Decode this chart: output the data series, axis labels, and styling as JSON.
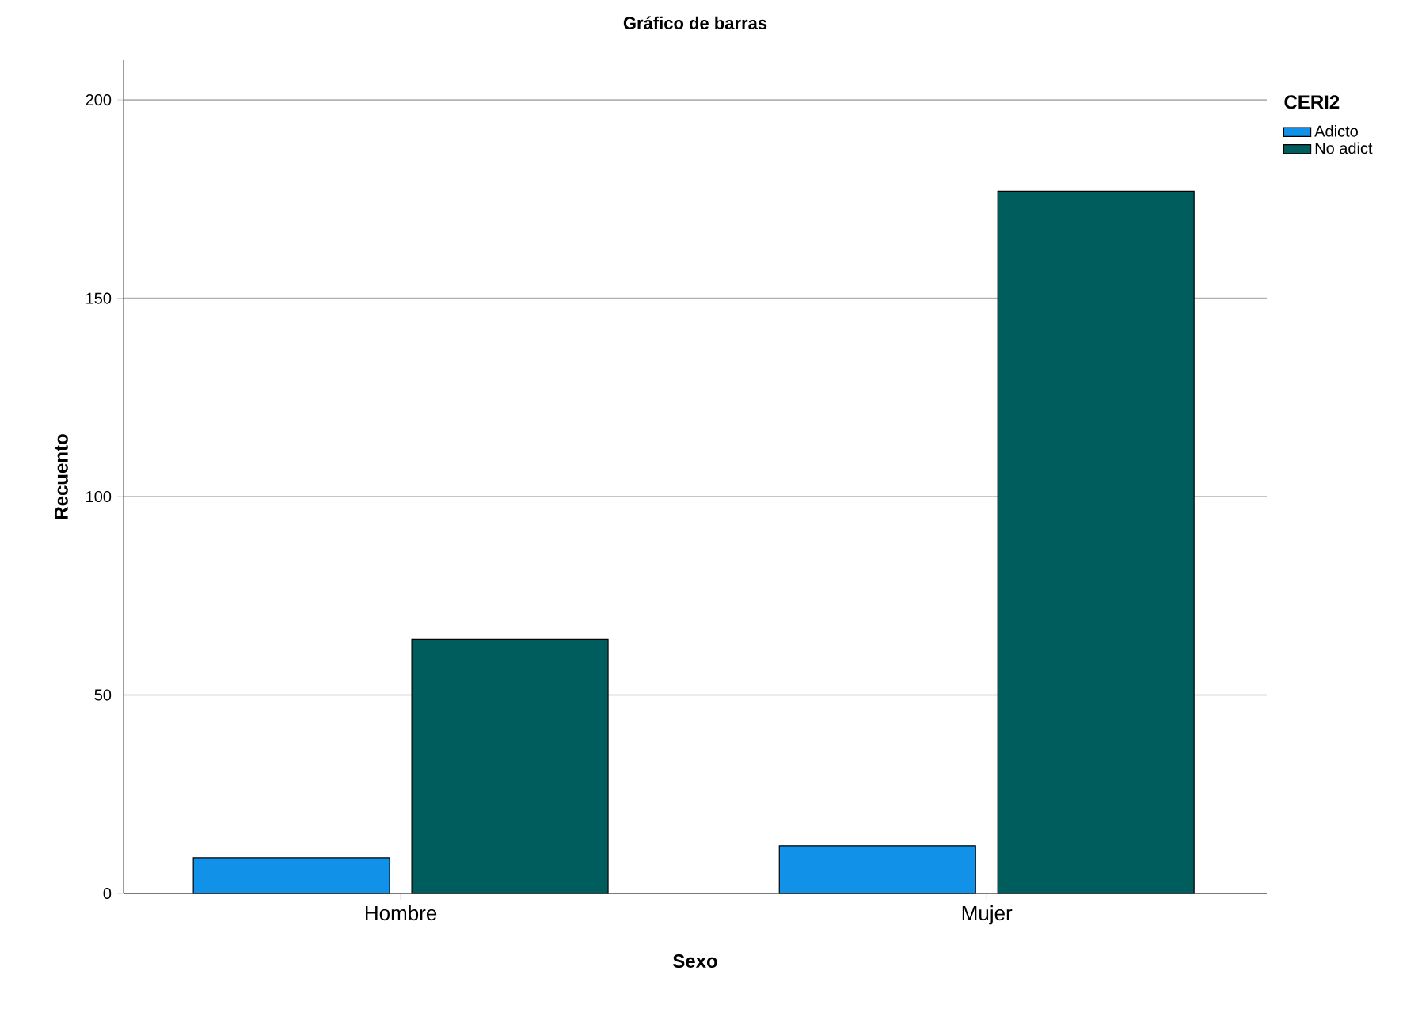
{
  "chart_data": {
    "type": "bar",
    "title": "Gráfico de barras",
    "xlabel": "Sexo",
    "ylabel": "Recuento",
    "legend_title": "CERI2",
    "categories": [
      "Hombre",
      "Mujer"
    ],
    "series": [
      {
        "name": "Adicto",
        "color": "#1192e8",
        "values": [
          9,
          12
        ]
      },
      {
        "name": "No adict",
        "color": "#005d5d",
        "values": [
          64,
          177
        ]
      }
    ],
    "ylim": [
      0,
      210
    ],
    "yticks": [
      0,
      50,
      100,
      150,
      200
    ],
    "grid": "y",
    "legend": "top right"
  }
}
